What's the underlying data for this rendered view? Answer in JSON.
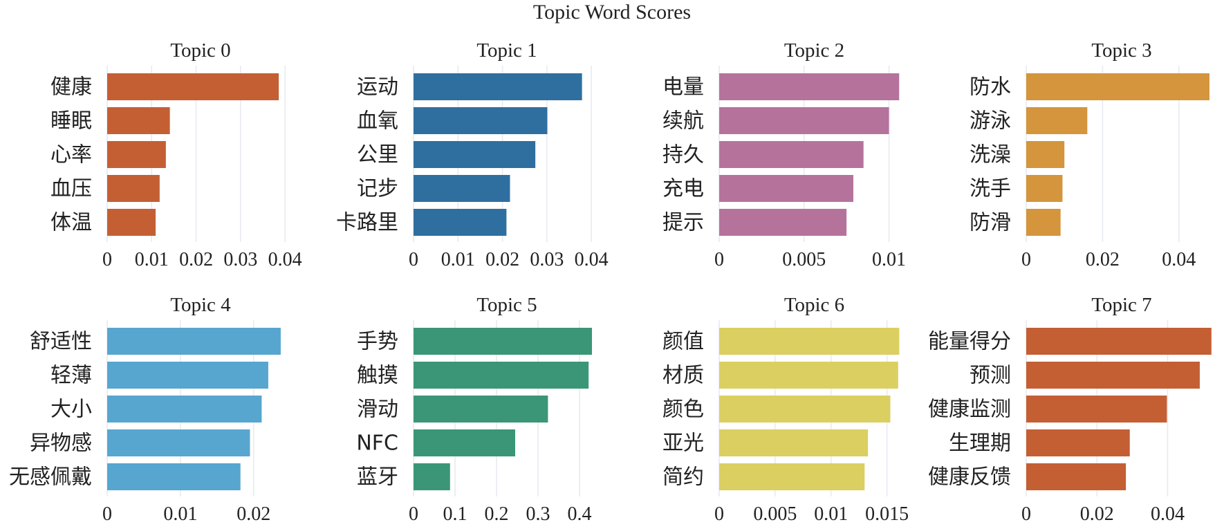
{
  "title": "Topic Word Scores",
  "chart_data": [
    {
      "type": "bar",
      "orientation": "horizontal",
      "title": "Topic 0",
      "color": "#c45f34",
      "categories": [
        "健康",
        "睡眠",
        "心率",
        "血压",
        "体温"
      ],
      "values": [
        0.0386,
        0.0141,
        0.0132,
        0.0118,
        0.0109
      ],
      "xlim": [
        0,
        0.042
      ],
      "xticks": [
        0,
        0.01,
        0.02,
        0.03,
        0.04
      ],
      "tick_labels": [
        "0",
        "0.01",
        "0.02",
        "0.03",
        "0.04"
      ]
    },
    {
      "type": "bar",
      "orientation": "horizontal",
      "title": "Topic 1",
      "color": "#2f6f9f",
      "categories": [
        "运动",
        "血氧",
        "公里",
        "记步",
        "卡路里"
      ],
      "values": [
        0.0379,
        0.0301,
        0.0274,
        0.0217,
        0.0209
      ],
      "xlim": [
        0,
        0.042
      ],
      "xticks": [
        0,
        0.01,
        0.02,
        0.03,
        0.04
      ],
      "tick_labels": [
        "0",
        "0.01",
        "0.02",
        "0.03",
        "0.04"
      ]
    },
    {
      "type": "bar",
      "orientation": "horizontal",
      "title": "Topic 2",
      "color": "#b5739c",
      "categories": [
        "电量",
        "续航",
        "持久",
        "充电",
        "提示"
      ],
      "values": [
        0.0106,
        0.01,
        0.0085,
        0.0079,
        0.0075
      ],
      "xlim": [
        0,
        0.0112
      ],
      "xticks": [
        0,
        0.005,
        0.01
      ],
      "tick_labels": [
        "0",
        "0.005",
        "0.01"
      ]
    },
    {
      "type": "bar",
      "orientation": "horizontal",
      "title": "Topic 3",
      "color": "#d4953c",
      "categories": [
        "防水",
        "游泳",
        "洗澡",
        "洗手",
        "防滑"
      ],
      "values": [
        0.048,
        0.016,
        0.01,
        0.0095,
        0.009
      ],
      "xlim": [
        0,
        0.05
      ],
      "xticks": [
        0,
        0.02,
        0.04
      ],
      "tick_labels": [
        "0",
        "0.02",
        "0.04"
      ]
    },
    {
      "type": "bar",
      "orientation": "horizontal",
      "title": "Topic 4",
      "color": "#57a6d0",
      "categories": [
        "舒适性",
        "轻薄",
        "大小",
        "异物感",
        "无感佩戴"
      ],
      "values": [
        0.0237,
        0.022,
        0.0211,
        0.0195,
        0.0182
      ],
      "xlim": [
        0,
        0.0255
      ],
      "xticks": [
        0,
        0.01,
        0.02
      ],
      "tick_labels": [
        "0",
        "0.01",
        "0.02"
      ]
    },
    {
      "type": "bar",
      "orientation": "horizontal",
      "title": "Topic 5",
      "color": "#3a9677",
      "categories": [
        "手势",
        "触摸",
        "滑动",
        "NFC",
        "蓝牙"
      ],
      "values": [
        0.43,
        0.422,
        0.324,
        0.245,
        0.088
      ],
      "xlim": [
        0,
        0.45
      ],
      "xticks": [
        0,
        0.1,
        0.2,
        0.3,
        0.4
      ],
      "tick_labels": [
        "0",
        "0.1",
        "0.2",
        "0.3",
        "0.4"
      ]
    },
    {
      "type": "bar",
      "orientation": "horizontal",
      "title": "Topic 6",
      "color": "#dbcf62",
      "categories": [
        "颜值",
        "材质",
        "颜色",
        "亚光",
        "简约"
      ],
      "values": [
        0.0161,
        0.016,
        0.0153,
        0.0133,
        0.013
      ],
      "xlim": [
        0,
        0.017
      ],
      "xticks": [
        0,
        0.005,
        0.01,
        0.015
      ],
      "tick_labels": [
        "0",
        "0.005",
        "0.01",
        "0.015"
      ]
    },
    {
      "type": "bar",
      "orientation": "horizontal",
      "title": "Topic 7",
      "color": "#c45f34",
      "categories": [
        "能量得分",
        "预测",
        "健康监测",
        "生理期",
        "健康反馈"
      ],
      "values": [
        0.0524,
        0.0491,
        0.0398,
        0.0293,
        0.0282
      ],
      "xlim": [
        0,
        0.054
      ],
      "xticks": [
        0,
        0.02,
        0.04
      ],
      "tick_labels": [
        "0",
        "0.02",
        "0.04"
      ]
    }
  ]
}
